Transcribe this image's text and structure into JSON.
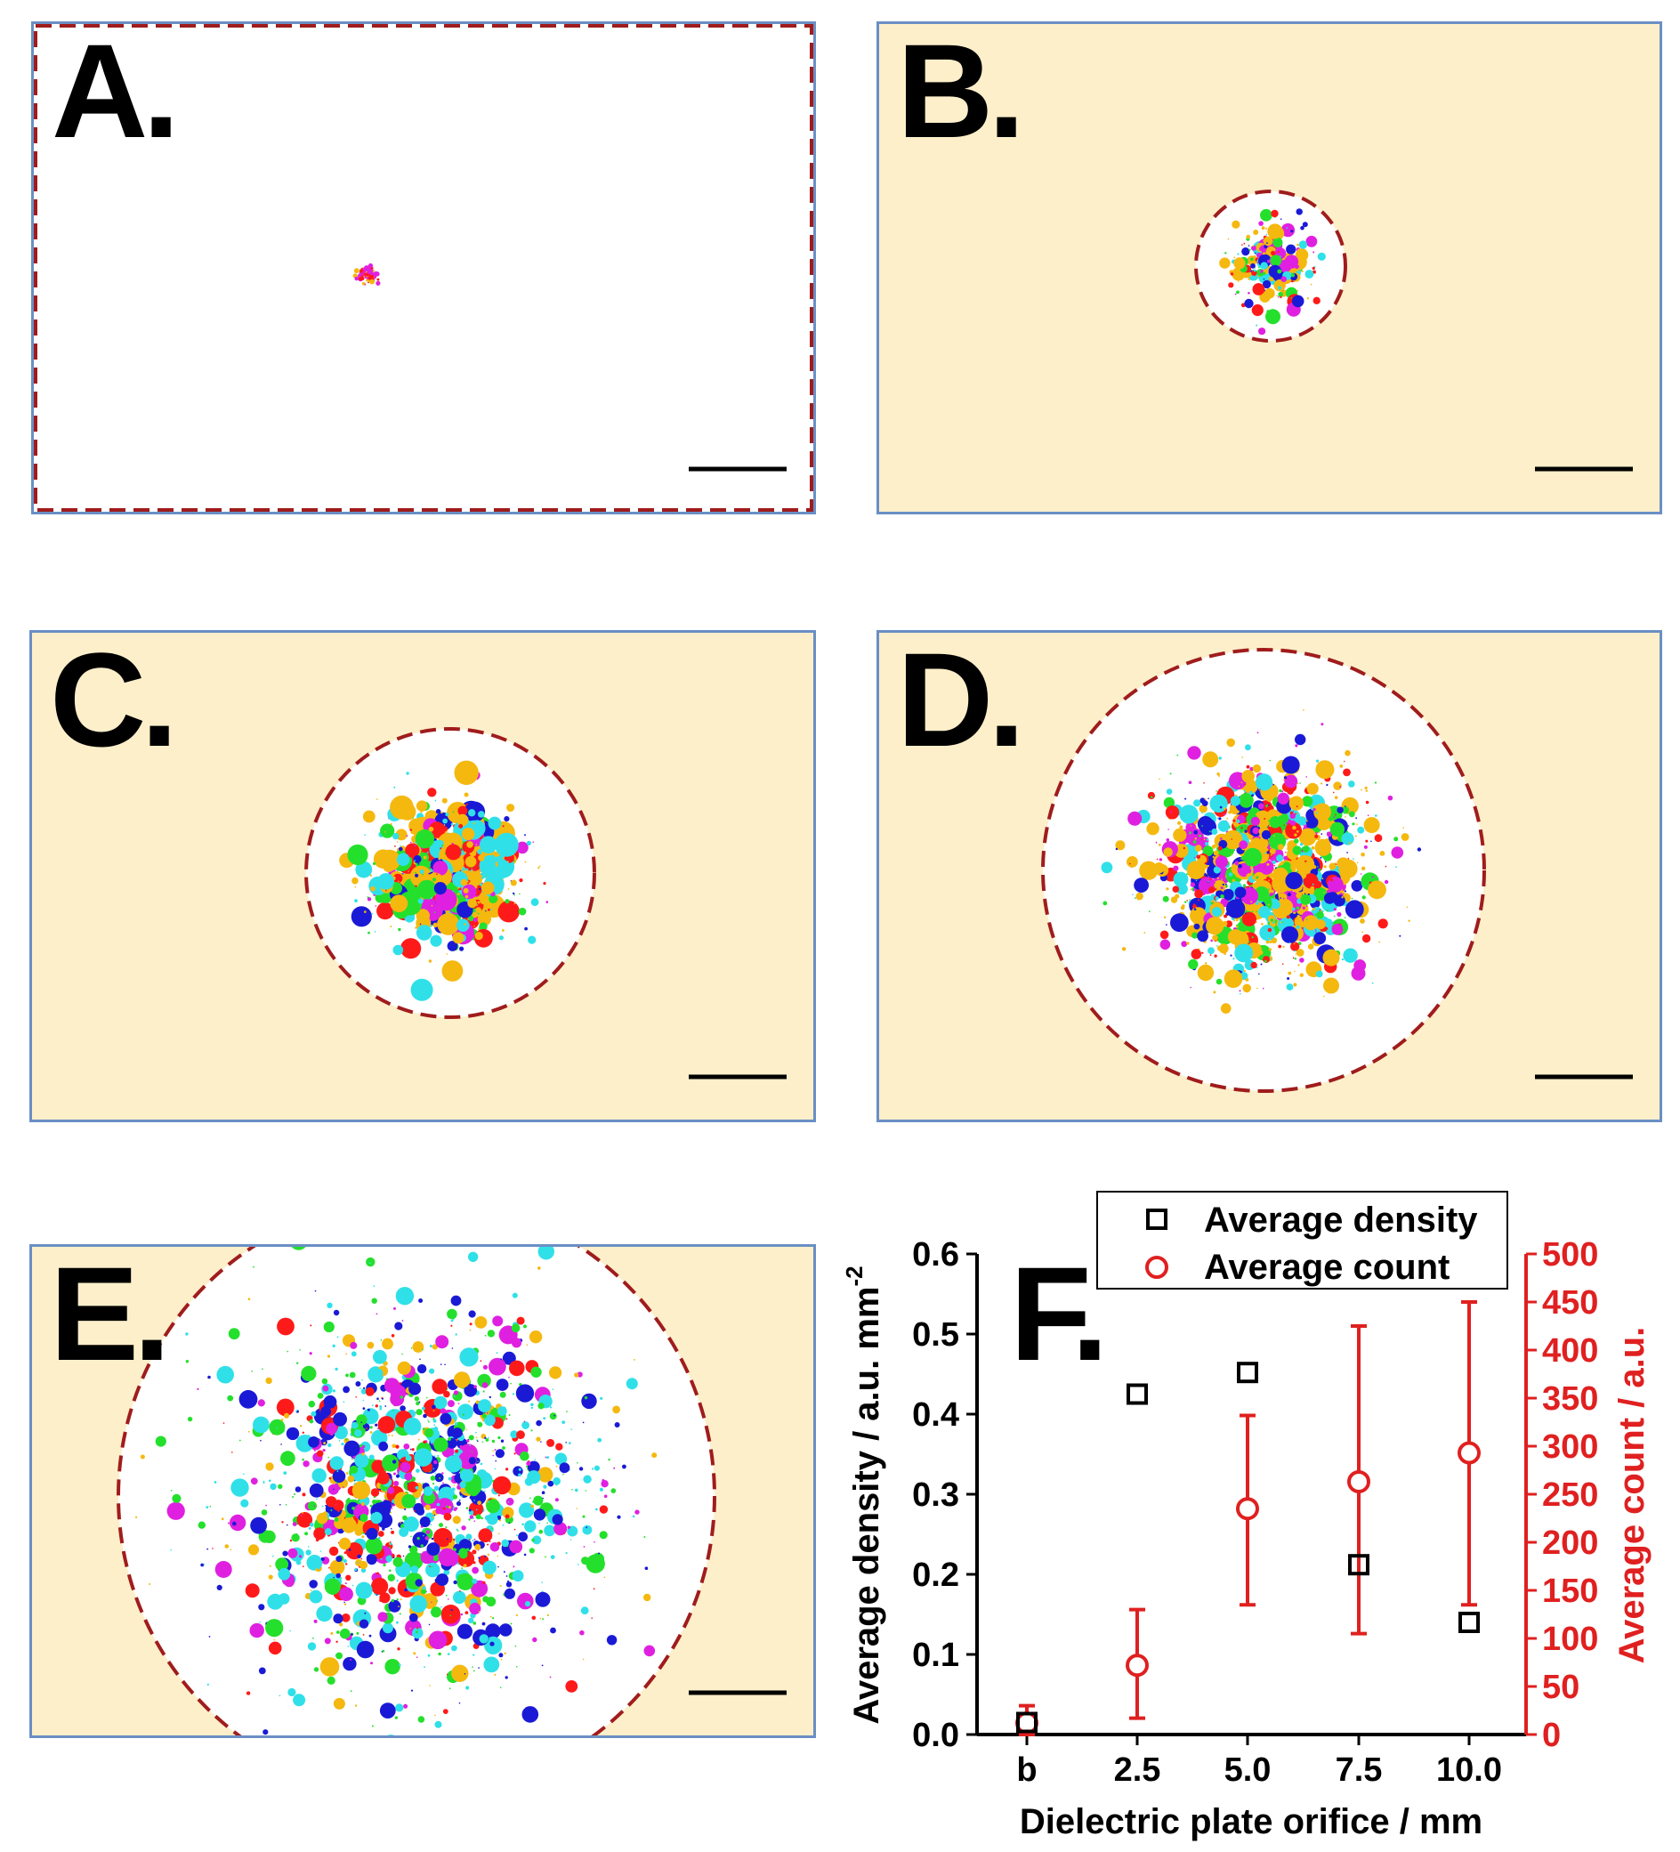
{
  "panels": [
    {
      "id": "A",
      "label": "A.",
      "background": "#ffffff",
      "border_style": "dashed-red",
      "spread": "tiny"
    },
    {
      "id": "B",
      "label": "B.",
      "background": "#fdefca",
      "spread": "small"
    },
    {
      "id": "C",
      "label": "C.",
      "background": "#fdefca",
      "spread": "medium"
    },
    {
      "id": "D",
      "label": "D.",
      "background": "#fdefca",
      "spread": "large"
    },
    {
      "id": "E",
      "label": "E.",
      "background": "#fdefca",
      "spread": "largest"
    }
  ],
  "colors": {
    "panel_background": "#fdefca",
    "panel_border": "#6a8fc4",
    "dashed_circle": "#a01c1c",
    "density_series": "#000000",
    "count_series": "#e02020",
    "particle_palette": [
      "#f5b80f",
      "#24e02c",
      "#ff1a1a",
      "#1a1ad6",
      "#e020e0",
      "#30e0e8"
    ]
  },
  "chart_data": {
    "type": "scatter",
    "panel_label": "F.",
    "xlabel": "Dielectric plate orifice / mm",
    "ylabel_left_main": "Average density / a.u. mm",
    "ylabel_left_sup": "-2",
    "ylabel_right": "Average count / a.u.",
    "categories": [
      "b",
      "2.5",
      "5.0",
      "7.5",
      "10.0"
    ],
    "y_left_range": [
      0,
      0.6
    ],
    "y_left_ticks": [
      "0.0",
      "0.1",
      "0.2",
      "0.3",
      "0.4",
      "0.5",
      "0.6"
    ],
    "y_right_range": [
      0,
      500
    ],
    "y_right_ticks": [
      "0",
      "50",
      "100",
      "150",
      "200",
      "250",
      "300",
      "350",
      "400",
      "450",
      "500"
    ],
    "legend": [
      {
        "name": "Average density",
        "marker": "square"
      },
      {
        "name": "Average count",
        "marker": "circle"
      }
    ],
    "series": [
      {
        "name": "Average density",
        "axis": "left",
        "values": [
          0.015,
          0.425,
          0.452,
          0.212,
          0.14
        ]
      },
      {
        "name": "Average count",
        "axis": "right",
        "values": [
          12,
          72,
          235,
          263,
          293
        ],
        "err_low": [
          0,
          17,
          135,
          105,
          135
        ],
        "err_high": [
          30,
          130,
          332,
          425,
          450
        ]
      }
    ]
  }
}
